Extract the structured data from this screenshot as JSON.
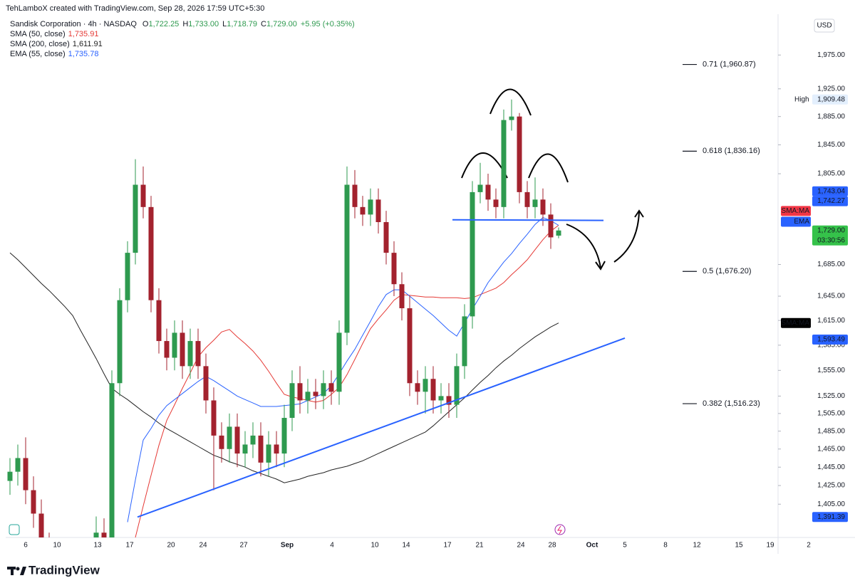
{
  "header": {
    "credit": "TehLamboX created with TradingView.com, Sep 28, 2026 17:59 UTC+5:30",
    "symbol": "Sandisk Corporation · 4h · NASDAQ",
    "ohlc": [
      {
        "label": "O",
        "value": "1,722.25"
      },
      {
        "label": "H",
        "value": "1,733.00"
      },
      {
        "label": "L",
        "value": "1,718.79"
      },
      {
        "label": "C",
        "value": "1,729.00"
      }
    ],
    "change": "+5.95 (+0.35%)",
    "currency": "USD"
  },
  "chart_data": {
    "type": "candlestick",
    "log_scale": true,
    "grid": false,
    "up_color": "#2e9a4f",
    "down_color": "#a3222e",
    "ylim": [
      1370,
      2037
    ],
    "yticks": [
      {
        "value": 1405,
        "label": "1,405.00"
      },
      {
        "value": 1425,
        "label": "1,425.00"
      },
      {
        "value": 1445,
        "label": "1,445.00"
      },
      {
        "value": 1465,
        "label": "1,465.00"
      },
      {
        "value": 1485,
        "label": "1,485.00"
      },
      {
        "value": 1505,
        "label": "1,505.00"
      },
      {
        "value": 1525,
        "label": "1,525.00"
      },
      {
        "value": 1555,
        "label": "1,555.00"
      },
      {
        "value": 1585,
        "label": "1,585.00"
      },
      {
        "value": 1615,
        "label": "1,615.00"
      },
      {
        "value": 1645,
        "label": "1,645.00"
      },
      {
        "value": 1685,
        "label": "1,685.00"
      },
      {
        "value": 1805,
        "label": "1,805.00"
      },
      {
        "value": 1845,
        "label": "1,845.00"
      },
      {
        "value": 1885,
        "label": "1,885.00"
      },
      {
        "value": 1925,
        "label": "1,925.00"
      },
      {
        "value": 1975,
        "label": "1,975.00"
      }
    ],
    "x_labels": [
      "6",
      "10",
      "13",
      "17",
      "20",
      "24",
      "27",
      "Sep",
      "4",
      "10",
      "14",
      "17",
      "21",
      "24",
      "28",
      "Oct",
      "5",
      "8",
      "12",
      "15",
      "19",
      "2"
    ],
    "open": [
      1430,
      1440,
      1455,
      1420,
      1395,
      1360,
      1340,
      1330,
      1325,
      1335,
      1345,
      1350,
      1375,
      1365,
      1540,
      1640,
      1700,
      1790,
      1760,
      1640,
      1590,
      1570,
      1600,
      1560,
      1590,
      1560,
      1520,
      1480,
      1465,
      1490,
      1460,
      1470,
      1480,
      1450,
      1470,
      1460,
      1500,
      1540,
      1520,
      1530,
      1525,
      1540,
      1530,
      1600,
      1790,
      1760,
      1750,
      1770,
      1740,
      1700,
      1660,
      1630,
      1540,
      1530,
      1545,
      1520,
      1525,
      1515,
      1560,
      1620,
      1780,
      1790,
      1770,
      1760,
      1880,
      1885,
      1780,
      1760,
      1770,
      1750,
      1722.25
    ],
    "high": [
      1455,
      1470,
      1478,
      1435,
      1410,
      1375,
      1355,
      1345,
      1350,
      1360,
      1365,
      1392,
      1390,
      1555,
      1655,
      1715,
      1825,
      1815,
      1775,
      1655,
      1605,
      1615,
      1615,
      1605,
      1605,
      1575,
      1535,
      1495,
      1505,
      1505,
      1485,
      1495,
      1495,
      1485,
      1485,
      1515,
      1555,
      1560,
      1545,
      1545,
      1555,
      1555,
      1615,
      1815,
      1810,
      1775,
      1785,
      1785,
      1755,
      1715,
      1675,
      1645,
      1555,
      1560,
      1560,
      1540,
      1540,
      1575,
      1635,
      1795,
      1820,
      1805,
      1785,
      1895,
      1909.48,
      1890,
      1795,
      1800,
      1785,
      1765,
      1733
    ],
    "low": [
      1415,
      1425,
      1405,
      1380,
      1345,
      1325,
      1315,
      1310,
      1310,
      1320,
      1330,
      1335,
      1350,
      1350,
      1525,
      1625,
      1685,
      1745,
      1625,
      1575,
      1555,
      1555,
      1545,
      1545,
      1545,
      1505,
      1420,
      1450,
      1450,
      1445,
      1445,
      1455,
      1435,
      1435,
      1445,
      1445,
      1485,
      1505,
      1505,
      1510,
      1510,
      1515,
      1515,
      1585,
      1745,
      1735,
      1735,
      1725,
      1685,
      1645,
      1615,
      1525,
      1515,
      1505,
      1505,
      1505,
      1500,
      1500,
      1545,
      1605,
      1765,
      1755,
      1745,
      1745,
      1865,
      1765,
      1745,
      1745,
      1735,
      1705,
      1718.79
    ],
    "close": [
      1440,
      1455,
      1420,
      1395,
      1360,
      1340,
      1330,
      1325,
      1335,
      1345,
      1350,
      1375,
      1365,
      1540,
      1640,
      1700,
      1790,
      1760,
      1640,
      1590,
      1570,
      1600,
      1560,
      1590,
      1560,
      1520,
      1480,
      1465,
      1490,
      1460,
      1470,
      1480,
      1450,
      1470,
      1460,
      1500,
      1540,
      1520,
      1530,
      1525,
      1540,
      1530,
      1600,
      1790,
      1760,
      1750,
      1770,
      1740,
      1700,
      1660,
      1630,
      1540,
      1530,
      1545,
      1520,
      1525,
      1515,
      1560,
      1620,
      1780,
      1790,
      1770,
      1760,
      1880,
      1885,
      1780,
      1760,
      1770,
      1750,
      1720,
      1729
    ],
    "last_label": "1,729.00",
    "countdown": "03:30:56",
    "high_marker": {
      "label": "High",
      "value": 1909.48,
      "value_label": "1,909.48"
    },
    "series": [
      {
        "name": "SMA (50, close)",
        "last_label": "1,735.91",
        "badge": "SMA:MA",
        "color": "#e53935",
        "values": [
          null,
          null,
          null,
          null,
          null,
          null,
          null,
          null,
          null,
          null,
          null,
          null,
          null,
          null,
          null,
          null,
          1370,
          1403,
          1436,
          1469,
          1497,
          1515,
          1534,
          1552,
          1571,
          1582,
          1591,
          1601,
          1604,
          1595,
          1587,
          1578,
          1567,
          1554,
          1540,
          1527,
          1524,
          1522,
          1520,
          1518,
          1520,
          1527,
          1535,
          1550,
          1568,
          1587,
          1605,
          1617,
          1628,
          1640,
          1647,
          1646,
          1645,
          1644,
          1644,
          1643,
          1643,
          1643,
          1642,
          1643,
          1647,
          1651,
          1655,
          1662,
          1672,
          1681,
          1691,
          1704,
          1717,
          1728,
          1735.91
        ]
      },
      {
        "name": "SMA (200, close)",
        "last_label": "1,611.91",
        "badge": "SMA:MA",
        "color": "#222222",
        "values": [
          1700,
          1691,
          1681,
          1671,
          1661,
          1652,
          1642,
          1632,
          1621,
          1603,
          1586,
          1569,
          1551,
          1534,
          1527,
          1521,
          1514,
          1507,
          1501,
          1494,
          1488,
          1483,
          1478,
          1473,
          1468,
          1463,
          1458,
          1455,
          1451,
          1448,
          1445,
          1441,
          1438,
          1435,
          1432,
          1428,
          1430,
          1432,
          1435,
          1437,
          1439,
          1442,
          1444,
          1446,
          1449,
          1452,
          1456,
          1460,
          1464,
          1468,
          1472,
          1476,
          1480,
          1484,
          1491,
          1499,
          1507,
          1515,
          1523,
          1532,
          1541,
          1549,
          1558,
          1566,
          1573,
          1581,
          1588,
          1595,
          1601,
          1607,
          1611.91
        ]
      },
      {
        "name": "EMA (55, close)",
        "last_label": "1,735.78",
        "badge": "EMA",
        "color": "#2962ff",
        "values": [
          null,
          null,
          null,
          null,
          null,
          null,
          null,
          null,
          null,
          null,
          null,
          null,
          null,
          null,
          null,
          1386,
          1431,
          1475,
          1488,
          1503,
          1514,
          1521,
          1528,
          1535,
          1542,
          1548,
          1543,
          1537,
          1531,
          1525,
          1521,
          1517,
          1513,
          1513,
          1513,
          1514,
          1515,
          1516,
          1520,
          1524,
          1528,
          1537,
          1551,
          1566,
          1580,
          1597,
          1614,
          1632,
          1647,
          1653,
          1653,
          1645,
          1637,
          1629,
          1621,
          1612,
          1603,
          1596,
          1612,
          1629,
          1645,
          1662,
          1675,
          1688,
          1699,
          1712,
          1724,
          1737,
          1746,
          1742,
          1735.78
        ]
      }
    ],
    "trendlines": [
      {
        "color": "#2962ff",
        "values": [
          1391.39,
          1593.49
        ],
        "value_labels": [
          "1,391.39",
          "1,593.49"
        ]
      },
      {
        "color": "#2962ff",
        "values": [
          1743.04,
          1742.27
        ],
        "value_labels": [
          "1,743.04",
          "1,742.27"
        ]
      }
    ],
    "fib_levels": [
      {
        "value": 1960.87,
        "label": "0.71 (1,960.87)"
      },
      {
        "value": 1836.16,
        "label": "0.618 (1,836.16)"
      },
      {
        "value": 1676.2,
        "label": "0.5 (1,676.20)"
      },
      {
        "value": 1516.23,
        "label": "0.382 (1,516.23)"
      }
    ]
  },
  "footer": {
    "brand": "TradingView"
  }
}
